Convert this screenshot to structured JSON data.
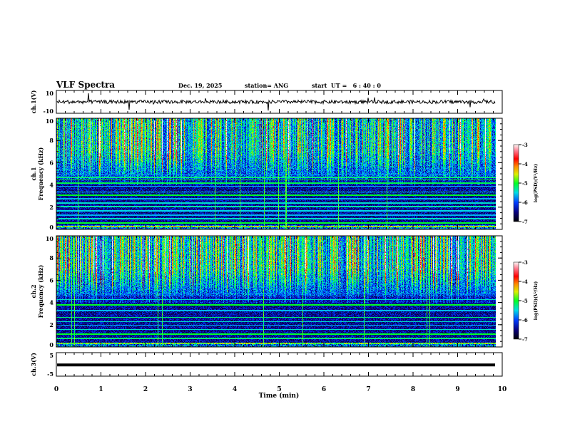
{
  "chart_data": {
    "type": "heatmap",
    "title": "VLF Spectra",
    "date": "Dec. 19, 2025",
    "station": "station= ANG",
    "start_ut": "start  UT =   6 : 40 : 0",
    "xlabel": "Time  (min)",
    "xlim": [
      0,
      10
    ],
    "xticks": [
      "0",
      "1",
      "2",
      "3",
      "4",
      "5",
      "6",
      "7",
      "8",
      "9",
      "10"
    ],
    "data_end_min": 9.85,
    "panels": [
      {
        "id": "ch1",
        "type": "line",
        "ylabel": "ch.1(V)",
        "ylim": [
          -10,
          10
        ],
        "yticks": [
          "10",
          "-10"
        ],
        "baseline": 0
      },
      {
        "id": "spec1",
        "type": "heatmap",
        "ylabel_line1": "ch.1",
        "ylabel_line2": "Frequency  (kHz)",
        "ylim": [
          0,
          10
        ],
        "yticks": [
          "0",
          "2",
          "4",
          "6",
          "8",
          "10"
        ],
        "colorbar": {
          "label": "log(PSD)(V²/Hz)",
          "range": [
            -7,
            -3
          ],
          "ticks": [
            "-3",
            "-4",
            "-5",
            "-6",
            "-7"
          ]
        }
      },
      {
        "id": "spec2",
        "type": "heatmap",
        "ylabel_line1": "ch.2",
        "ylabel_line2": "Frequency  (kHz)",
        "ylim": [
          0,
          10
        ],
        "yticks": [
          "0",
          "2",
          "4",
          "6",
          "8",
          "10"
        ],
        "colorbar": {
          "label": "log(PSD)(V²/Hz)",
          "range": [
            -7,
            -3
          ],
          "ticks": [
            "-3",
            "-4",
            "-5",
            "-6",
            "-7"
          ]
        }
      },
      {
        "id": "ch3",
        "type": "line",
        "ylabel": "ch.3(V)",
        "ylim": [
          -5,
          5
        ],
        "yticks": [
          "5",
          "-5"
        ],
        "baseline": -0.2
      }
    ]
  }
}
